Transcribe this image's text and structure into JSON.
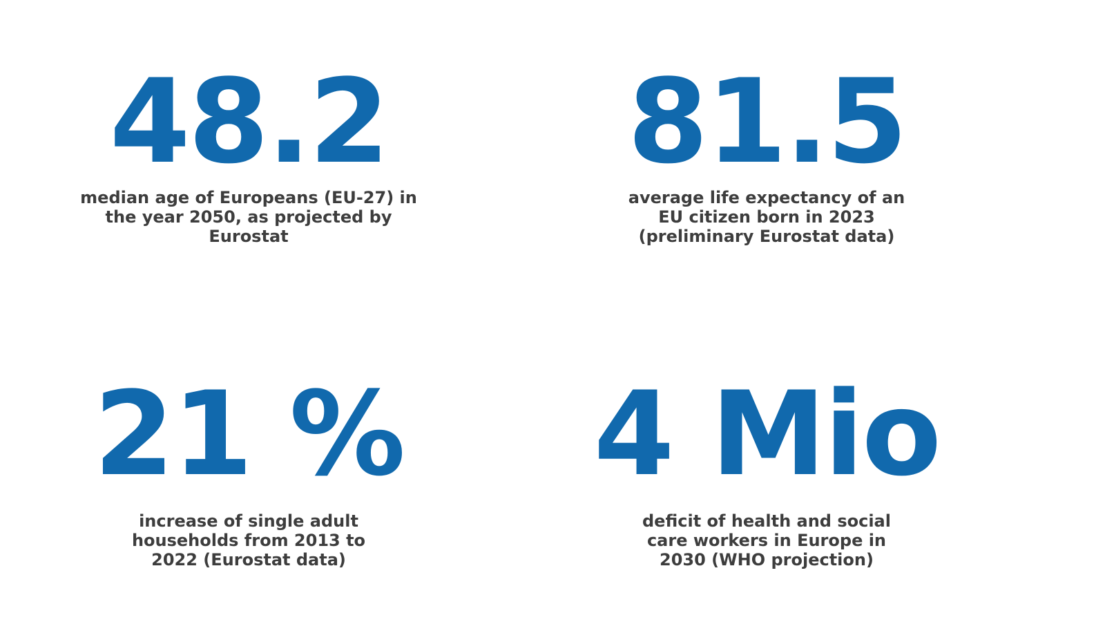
{
  "accent_color": "#1169ad",
  "text_color": "#3d3d3d",
  "stats": [
    {
      "value": "48.2",
      "caption": "median age of Europeans (EU-27) in\nthe year 2050, as projected by\nEurostat"
    },
    {
      "value": "81.5",
      "caption": "average life expectancy of an\nEU citizen born in 2023\n(preliminary Eurostat data)"
    },
    {
      "value": "21 %",
      "caption": "increase of single adult\nhouseholds from 2013 to\n2022 (Eurostat data)"
    },
    {
      "value": "4 Mio",
      "caption": "deficit of health and social\ncare workers in Europe in\n2030 (WHO projection)"
    }
  ]
}
